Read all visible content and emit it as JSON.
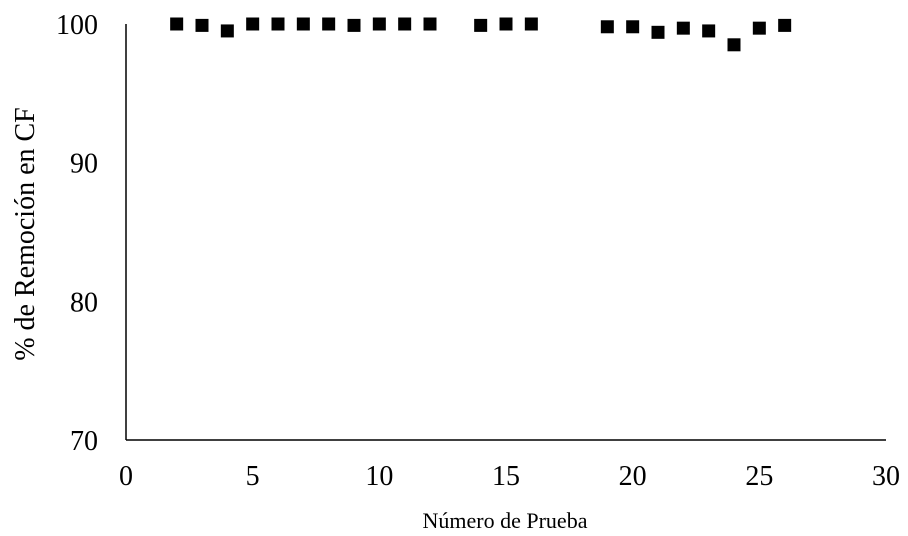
{
  "chart_data": {
    "type": "scatter",
    "title": "",
    "xlabel": "Número de Prueba",
    "ylabel": "% de Remoción en  CF",
    "xlim": [
      0,
      30
    ],
    "ylim": [
      70,
      100
    ],
    "x_ticks": [
      0,
      5,
      10,
      15,
      20,
      25,
      30
    ],
    "y_ticks": [
      70,
      80,
      90,
      100
    ],
    "grid": false,
    "legend": "none",
    "marker": "square",
    "marker_color": "#000000",
    "series": [
      {
        "x": [
          2,
          3,
          4,
          5,
          6,
          7,
          8,
          9,
          10,
          11,
          12,
          14,
          15,
          16,
          19,
          20,
          21,
          22,
          23,
          24,
          25,
          26
        ],
        "y": [
          100,
          99.9,
          99.5,
          100,
          100,
          100,
          100,
          99.9,
          100,
          100,
          100,
          99.9,
          100,
          100,
          99.8,
          99.8,
          99.4,
          99.7,
          99.5,
          98.5,
          99.7,
          99.9
        ]
      }
    ]
  }
}
